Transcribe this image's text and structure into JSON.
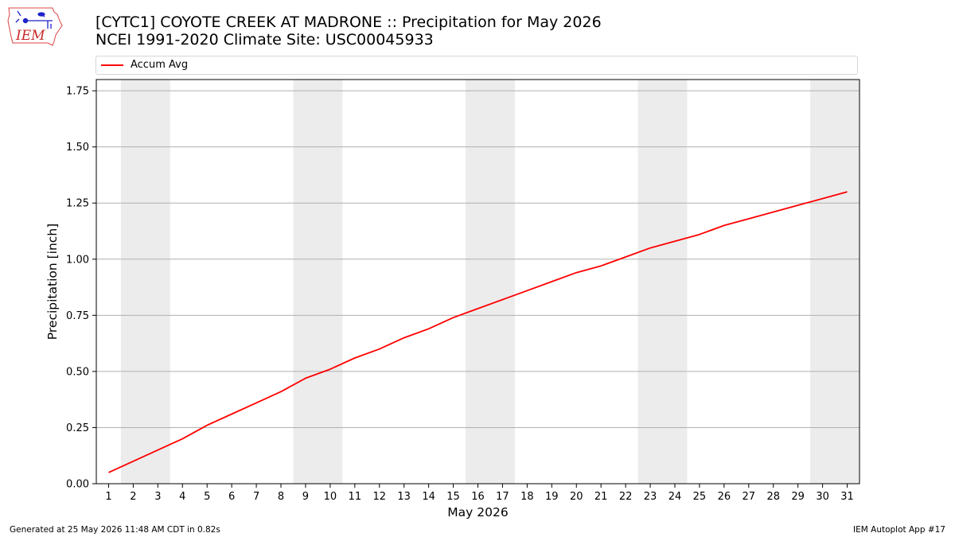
{
  "title_line1": "[CYTC1] COYOTE CREEK AT MADRONE :: Precipitation for May 2026",
  "title_line2": "NCEI 1991-2020 Climate Site: USC00045933",
  "logo_text": "IEM",
  "footer_left": "Generated at 25 May 2026 11:48 AM CDT in 0.82s",
  "footer_right": "IEM Autoplot App #17",
  "chart_data": {
    "type": "line",
    "xlabel": "May 2026",
    "ylabel": "Precipitation [inch]",
    "x": [
      1,
      2,
      3,
      4,
      5,
      6,
      7,
      8,
      9,
      10,
      11,
      12,
      13,
      14,
      15,
      16,
      17,
      18,
      19,
      20,
      21,
      22,
      23,
      24,
      25,
      26,
      27,
      28,
      29,
      30,
      31
    ],
    "series": [
      {
        "name": "Accum Avg",
        "color": "#ff0000",
        "values": [
          0.05,
          0.1,
          0.15,
          0.2,
          0.26,
          0.31,
          0.36,
          0.41,
          0.47,
          0.51,
          0.56,
          0.6,
          0.65,
          0.69,
          0.74,
          0.78,
          0.82,
          0.86,
          0.9,
          0.94,
          0.97,
          1.01,
          1.05,
          1.08,
          1.11,
          1.15,
          1.18,
          1.21,
          1.24,
          1.27,
          1.3
        ]
      }
    ],
    "ylim": [
      0,
      1.8
    ],
    "xlim": [
      0.5,
      31.5
    ],
    "yticks": [
      0.0,
      0.25,
      0.5,
      0.75,
      1.0,
      1.25,
      1.5,
      1.75
    ],
    "ytick_labels": [
      "0.00",
      "0.25",
      "0.50",
      "0.75",
      "1.00",
      "1.25",
      "1.50",
      "1.75"
    ],
    "weekend_bands": [
      [
        2,
        3
      ],
      [
        9,
        10
      ],
      [
        16,
        17
      ],
      [
        23,
        24
      ],
      [
        30,
        31
      ]
    ],
    "grid": "horizontal",
    "legend": "top",
    "band_color": "#ececec",
    "grid_color": "#b0b0b0"
  }
}
